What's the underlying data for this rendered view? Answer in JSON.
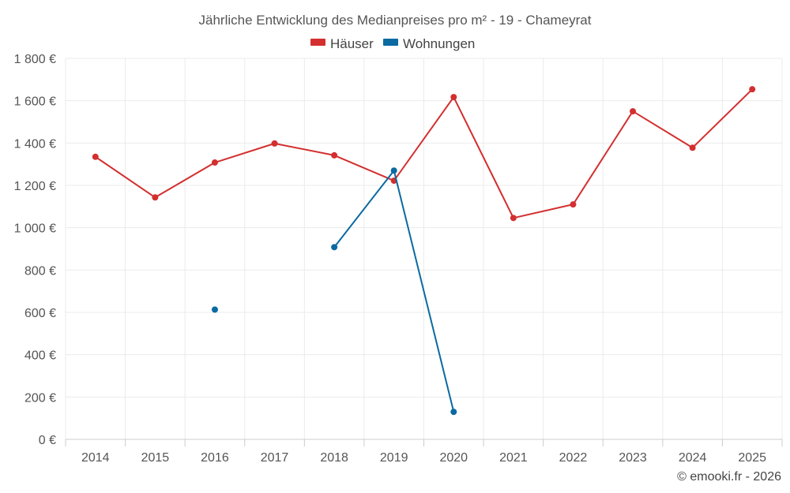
{
  "chart_data": {
    "type": "line",
    "title": "Jährliche Entwicklung des Medianpreises pro m² - 19 - Chameyrat",
    "categories": [
      "2014",
      "2015",
      "2016",
      "2017",
      "2018",
      "2019",
      "2020",
      "2021",
      "2022",
      "2023",
      "2024",
      "2025"
    ],
    "ylim": [
      0,
      1800
    ],
    "yticks": [
      0,
      200,
      400,
      600,
      800,
      1000,
      1200,
      1400,
      1600,
      1800
    ],
    "ytick_labels": [
      "0 €",
      "200 €",
      "400 €",
      "600 €",
      "800 €",
      "1 000 €",
      "1 200 €",
      "1 400 €",
      "1 600 €",
      "1 800 €"
    ],
    "grid": true,
    "legend_position": "top-center",
    "series": [
      {
        "name": "Häuser",
        "color": "#d32f2f",
        "values": [
          1335,
          1143,
          1308,
          1398,
          1342,
          1222,
          1617,
          1046,
          1110,
          1550,
          1378,
          1654
        ]
      },
      {
        "name": "Wohnungen",
        "color": "#0a6aa1",
        "values": [
          null,
          null,
          613,
          null,
          908,
          1270,
          130,
          null,
          null,
          null,
          null,
          null
        ]
      }
    ]
  },
  "credit": "© emooki.fr - 2026"
}
